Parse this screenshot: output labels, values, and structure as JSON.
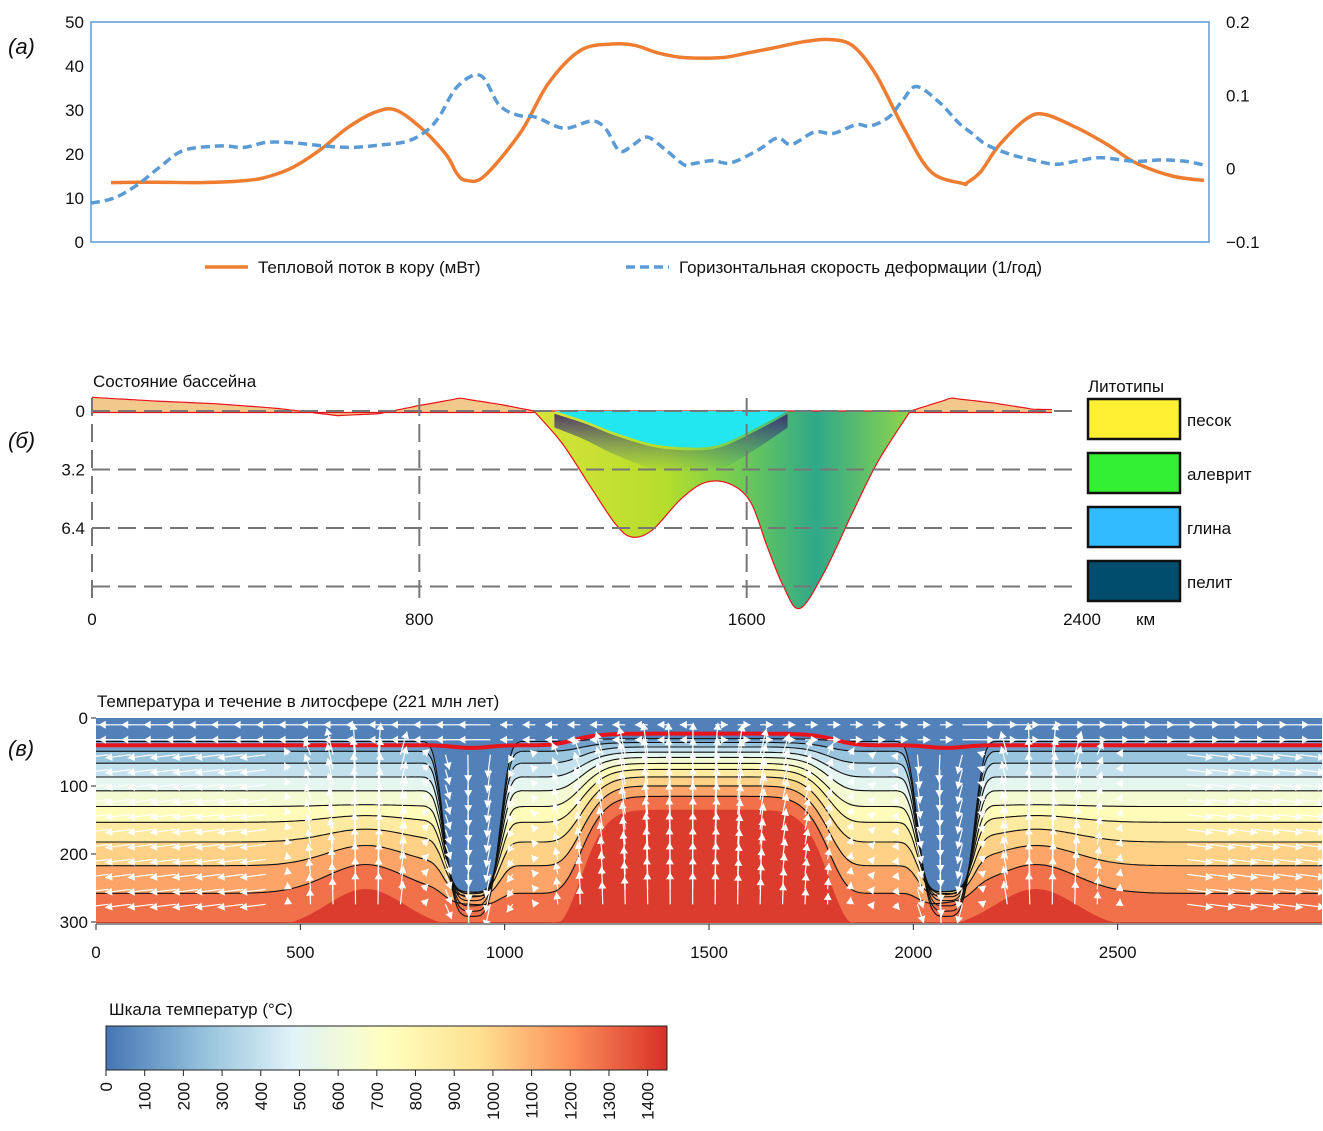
{
  "colors": {
    "heat": "#EE7D31",
    "strain": "#5B9BD5",
    "frame": "#5B9BD5",
    "moho": "#E8141C",
    "basin_fill": "#F2C98A",
    "basin_edge": "#E8141C",
    "water": "#22E6F0"
  },
  "panel_a": {
    "letter": "(а)",
    "legend": {
      "heat": "Тепловой поток в кору (мВт)",
      "strain": "Горизонтальная скорость деформации (1/год)"
    }
  },
  "panel_b": {
    "letter": "(б)",
    "title": "Состояние бассейна",
    "legend_title": "Литотипы",
    "x_unit": "км",
    "lithotypes": [
      {
        "name": "песок",
        "color": "#FFF033"
      },
      {
        "name": "алеврит",
        "color": "#33F033"
      },
      {
        "name": "глина",
        "color": "#33BBFF"
      },
      {
        "name": "пелит",
        "color": "#004D6E"
      }
    ]
  },
  "panel_c": {
    "letter": "(в)",
    "title": "Температура и течение в литосфере (221 млн лет)"
  },
  "colorbar": {
    "title": "Шкала температур (°C)",
    "ticks": [
      "0",
      "100",
      "200",
      "300",
      "400",
      "500",
      "600",
      "700",
      "800",
      "900",
      "1000",
      "1100",
      "1200",
      "1300",
      "1400"
    ],
    "stops": [
      "#4575B4",
      "#91BFDB",
      "#E0F3F8",
      "#FFFFBF",
      "#FEE090",
      "#FC8D59",
      "#D73027"
    ]
  },
  "chart_data": [
    {
      "type": "line",
      "xlim": [
        0,
        2400
      ],
      "ylim": [
        0,
        50
      ],
      "y2lim": [
        -0.1,
        0.2
      ],
      "yticks": [
        "0",
        "10",
        "20",
        "30",
        "40",
        "50"
      ],
      "y2ticks": [
        "−0.1",
        "0",
        "0.1",
        "0.2"
      ],
      "series": [
        {
          "name": "Тепловой поток в кору (мВт)",
          "axis": "left",
          "style": "solid",
          "x": [
            0,
            100,
            200,
            300,
            350,
            400,
            460,
            520,
            580,
            625,
            680,
            735,
            760,
            780,
            820,
            900,
            960,
            1030,
            1100,
            1150,
            1200,
            1250,
            1300,
            1350,
            1400,
            1450,
            1520,
            1580,
            1630,
            1680,
            1740,
            1800,
            1870,
            1880,
            1910,
            1950,
            2010,
            2050,
            2120,
            2190,
            2250,
            2330,
            2400
          ],
          "y": [
            13.5,
            13.6,
            13.5,
            14,
            15,
            17,
            21,
            26,
            29.5,
            30,
            26,
            20,
            15.5,
            14,
            15,
            25,
            36,
            43.5,
            45,
            44.7,
            43,
            42,
            41.8,
            42,
            43,
            44,
            45.5,
            46,
            44.5,
            38,
            26,
            16,
            13.3,
            13.5,
            16,
            22,
            28,
            29,
            26,
            22,
            18,
            15,
            14
          ]
        },
        {
          "name": "Горизонтальная скорость деформации (1/год)",
          "axis": "right",
          "style": "dashed",
          "x": [
            0,
            50,
            100,
            150,
            200,
            280,
            330,
            380,
            440,
            500,
            560,
            620,
            680,
            720,
            750,
            790,
            840,
            880,
            920,
            960,
            1020,
            1080,
            1110,
            1140,
            1170,
            1200,
            1240,
            1280,
            1300,
            1340,
            1380,
            1440,
            1480,
            1510,
            1560,
            1600,
            1650,
            1680,
            1720,
            1750,
            1780,
            1830,
            1870,
            1900,
            1930,
            1980,
            2030,
            2080,
            2130,
            2180,
            2250,
            2310,
            2360,
            2400
          ],
          "y": [
            -0.047,
            -0.04,
            -0.022,
            0.003,
            0.025,
            0.031,
            0.029,
            0.036,
            0.035,
            0.031,
            0.029,
            0.032,
            0.037,
            0.05,
            0.07,
            0.112,
            0.127,
            0.087,
            0.073,
            0.07,
            0.055,
            0.065,
            0.054,
            0.024,
            0.033,
            0.043,
            0.025,
            0.005,
            0.007,
            0.011,
            0.008,
            0.026,
            0.042,
            0.033,
            0.05,
            0.048,
            0.06,
            0.058,
            0.07,
            0.093,
            0.112,
            0.09,
            0.063,
            0.048,
            0.033,
            0.02,
            0.012,
            0.006,
            0.011,
            0.015,
            0.01,
            0.012,
            0.01,
            0.005
          ]
        }
      ]
    },
    {
      "type": "area",
      "xlim": [
        0,
        2400
      ],
      "xticks": [
        "0",
        "800",
        "1600",
        "2400"
      ],
      "yticks": [
        "0",
        "3.2",
        "6.4"
      ],
      "y_values": [
        0,
        3.2,
        6.4,
        9.6
      ],
      "ylim_depth": [
        -0.9,
        11
      ],
      "surface": {
        "x": [
          0,
          150,
          300,
          450,
          600,
          700,
          800,
          900,
          1000,
          1080,
          2000,
          2100,
          2200,
          2300,
          2400
        ],
        "y": [
          -0.75,
          -0.55,
          -0.4,
          -0.15,
          0.25,
          0.15,
          -0.3,
          -0.7,
          -0.35,
          0,
          0,
          -0.7,
          -0.45,
          -0.1,
          -0.05
        ]
      },
      "basement": {
        "x": [
          1080,
          1150,
          1220,
          1280,
          1320,
          1370,
          1440,
          1500,
          1560,
          1610,
          1650,
          1690,
          1730,
          1790,
          1860,
          1920,
          2000
        ],
        "y": [
          0,
          1.8,
          4.2,
          6.2,
          6.9,
          6.5,
          4.8,
          3.9,
          4.0,
          5.0,
          7.4,
          9.6,
          10.8,
          8.8,
          5.5,
          2.8,
          0
        ]
      },
      "water": {
        "x": [
          1130,
          1200,
          1280,
          1380,
          1480,
          1540,
          1600,
          1660,
          1700
        ],
        "y": [
          0,
          0.5,
          1.2,
          1.85,
          2.0,
          1.8,
          1.2,
          0.5,
          0
        ]
      }
    },
    {
      "type": "heatmap",
      "xlim": [
        0,
        3000
      ],
      "ylim": [
        0,
        300
      ],
      "xticks": [
        "0",
        "500",
        "1000",
        "1500",
        "2000",
        "2500"
      ],
      "yticks": [
        "0",
        "100",
        "200",
        "300"
      ],
      "xtick_values": [
        0,
        500,
        1000,
        1500,
        2000,
        2500
      ],
      "ytick_values": [
        0,
        100,
        200,
        300
      ],
      "moho_depth_km": 40,
      "upwellings_km": [
        660,
        1450,
        2300
      ],
      "downwellings_km": [
        920,
        2080
      ],
      "temperature_range": [
        0,
        1450
      ]
    }
  ]
}
